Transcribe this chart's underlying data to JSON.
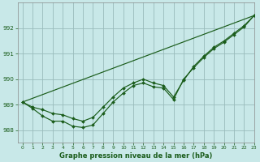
{
  "title": "Graphe pression niveau de la mer (hPa)",
  "bg_color": "#c8e8e8",
  "grid_color": "#99bbbb",
  "line_color": "#1a5c1a",
  "xlim": [
    -0.5,
    23
  ],
  "ylim": [
    987.5,
    993.0
  ],
  "yticks": [
    988,
    989,
    990,
    991,
    992
  ],
  "xticks": [
    0,
    1,
    2,
    3,
    4,
    5,
    6,
    7,
    8,
    9,
    10,
    11,
    12,
    13,
    14,
    15,
    16,
    17,
    18,
    19,
    20,
    21,
    22,
    23
  ],
  "series1": [
    989.1,
    988.9,
    988.8,
    988.65,
    988.6,
    988.45,
    988.35,
    988.5,
    988.9,
    989.3,
    989.65,
    989.85,
    990.0,
    989.85,
    989.75,
    989.3,
    989.95,
    990.5,
    990.9,
    991.25,
    991.5,
    991.8,
    992.1,
    992.5
  ],
  "series2": [
    989.1,
    988.85,
    988.55,
    988.35,
    988.35,
    988.15,
    988.1,
    988.2,
    988.65,
    989.1,
    989.45,
    989.75,
    989.85,
    989.7,
    989.65,
    989.2,
    990.0,
    990.45,
    990.85,
    991.2,
    991.45,
    991.75,
    992.05,
    992.5
  ],
  "trend_y": [
    989.1,
    992.5
  ],
  "trend_x": [
    0,
    23
  ]
}
